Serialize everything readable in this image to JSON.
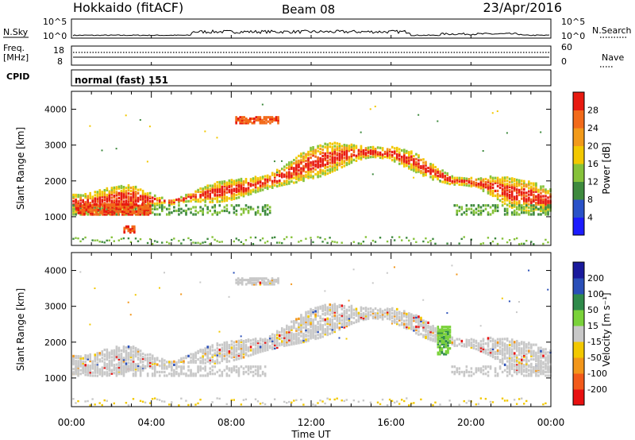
{
  "header": {
    "station": "Hokkaido (fitACF)",
    "beam": "Beam 08",
    "date": "23/Apr/2016"
  },
  "noise_panel": {
    "left_label": "N.Sky",
    "right_label": "N.Search",
    "tick_top": "10^5",
    "tick_bottom": "10^0"
  },
  "freq_panel": {
    "label_line1": "Freq.",
    "label_line2": "[MHz]",
    "left_tick_top": "18",
    "left_tick_bottom": "8",
    "right_label": "Nave",
    "right_tick_top": "60",
    "right_tick_bottom": "0"
  },
  "cpid_panel": {
    "label": "CPID",
    "mode": "normal (fast) 151"
  },
  "colorbars": {
    "power": {
      "label": "Power [dB]",
      "ticks": [
        "4",
        "8",
        "12",
        "16",
        "20",
        "24",
        "28"
      ],
      "colors": [
        "#1c1cff",
        "#2a52c8",
        "#3e8a3e",
        "#86c23a",
        "#f2c800",
        "#f29a1a",
        "#f26a1a",
        "#e81a10"
      ]
    },
    "velocity": {
      "label": "Velocity [m s⁻¹]",
      "ticks": [
        "200",
        "100",
        "50",
        "15",
        "-15",
        "-50",
        "-100",
        "-200"
      ],
      "colors": [
        "#1a1a9c",
        "#2a4fb8",
        "#2f8a4a",
        "#7ad23a",
        "#c8c8c8",
        "#f2c800",
        "#f2961a",
        "#f25a1a",
        "#e81010"
      ]
    }
  },
  "chart_data": [
    {
      "type": "scatter",
      "title": "",
      "xlabel": "Time UT",
      "ylabel": "Slant Range [km]",
      "x_tick_labels": [
        "00:00",
        "04:00",
        "08:00",
        "12:00",
        "16:00",
        "20:00",
        "00:00"
      ],
      "y_tick_labels": [
        "1000",
        "2000",
        "3000",
        "4000"
      ],
      "xlim_hours": [
        0,
        24
      ],
      "ylim_km": [
        200,
        4500
      ],
      "series": [
        {
          "name": "Power [dB]",
          "ridge": {
            "hour": [
              0,
              1,
              2,
              3,
              4,
              5,
              6,
              7,
              8,
              9,
              10,
              11,
              12,
              13,
              14,
              15,
              16,
              17,
              18,
              19,
              20,
              21,
              22,
              23,
              24
            ],
            "range_km": [
              1400,
              1400,
              1500,
              1600,
              1500,
              1450,
              1600,
              1700,
              1800,
              1900,
              2050,
              2300,
              2550,
              2700,
              2800,
              2850,
              2800,
              2600,
              2300,
              2050,
              2000,
              1900,
              1700,
              1600,
              1500
            ]
          },
          "patches": [
            {
              "hour": [
                2.6,
                3.2
              ],
              "range_km": [
                600,
                800
              ]
            },
            {
              "hour": [
                8.2,
                10.3
              ],
              "range_km": [
                3650,
                3850
              ]
            },
            {
              "hour": [
                0.2,
                4.0
              ],
              "range_km": [
                1100,
                1400
              ]
            }
          ]
        },
        {
          "name": "Velocity [m s⁻¹]",
          "ridge": {
            "hour": [
              0,
              1,
              2,
              3,
              4,
              5,
              6,
              7,
              8,
              9,
              10,
              11,
              12,
              13,
              14,
              15,
              16,
              17,
              18,
              19,
              20,
              21,
              22,
              23,
              24
            ],
            "range_km": [
              1400,
              1400,
              1500,
              1600,
              1500,
              1450,
              1600,
              1700,
              1800,
              1900,
              2050,
              2300,
              2550,
              2700,
              2800,
              2850,
              2800,
              2600,
              2300,
              2050,
              2000,
              1900,
              1700,
              1600,
              1500
            ]
          },
          "patches": [
            {
              "hour": [
                18.3,
                19.0
              ],
              "range_km": [
                1700,
                2500
              ]
            },
            {
              "hour": [
                8.2,
                10.3
              ],
              "range_km": [
                3650,
                3850
              ]
            }
          ]
        }
      ]
    }
  ]
}
